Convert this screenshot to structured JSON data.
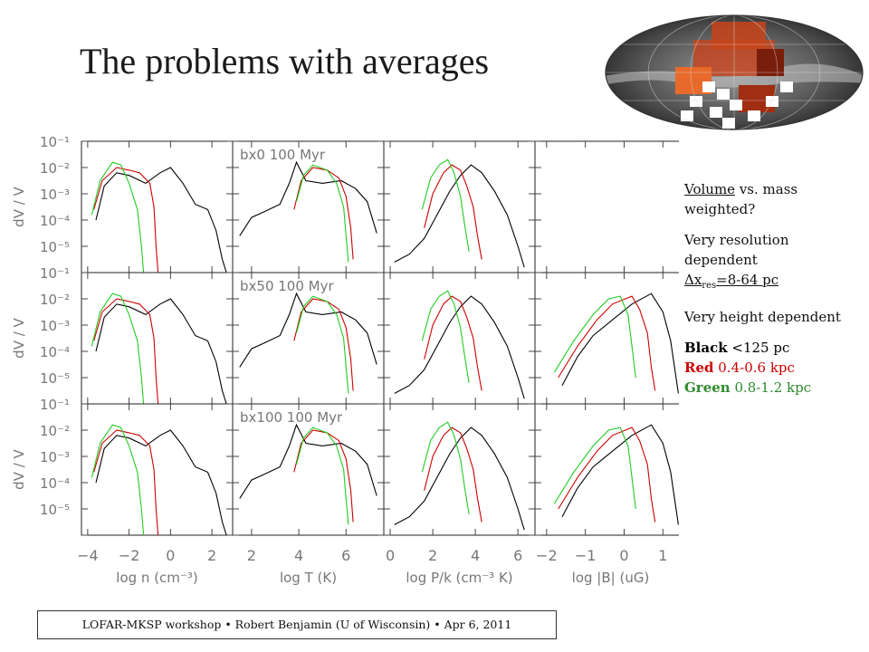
{
  "slide": {
    "title": "The problems with averages"
  },
  "notes": {
    "weighting": {
      "underlined": "Volume",
      "rest": " vs. mass weighted?"
    },
    "resolution": {
      "text": "Very resolution dependent",
      "delta_symbol": "Δx",
      "subscript": "res",
      "value": "=8-64 pc"
    },
    "height": "Very height dependent",
    "legend": [
      {
        "name": "Black",
        "range": " <125 pc",
        "color": "#000000"
      },
      {
        "name": "Red",
        "range": " 0.4-0.6 kpc",
        "color": "#cc0000"
      },
      {
        "name": "Green",
        "range": " 0.8-1.2 kpc",
        "color": "#2e8b2e"
      }
    ]
  },
  "footer": {
    "text": "LOFAR-MKSP workshop • Robert Benjamin (U of Wisconsin) • Apr 6, 2011"
  },
  "chart_data": {
    "type": "line",
    "ylabel": "dV / V",
    "y_ticks": [
      "10⁻¹",
      "10⁻²",
      "10⁻³",
      "10⁻⁴",
      "10⁻⁵"
    ],
    "yscale": "log",
    "ylim": [
      1e-06,
      0.1
    ],
    "row_labels": [
      "bx0  100 Myr",
      "bx50  100 Myr",
      "bx100  100 Myr"
    ],
    "series_colors": {
      "black": "#000000",
      "red": "#cc0000",
      "green": "#22cc22"
    },
    "columns": [
      {
        "xlabel": "log n (cm⁻³)",
        "x_ticks": [
          -4,
          -2,
          0,
          2
        ],
        "xlim": [
          -4.3,
          3.0
        ],
        "series": [
          {
            "color": "black",
            "points": [
              [
                -3.6,
                -4.0
              ],
              [
                -3.2,
                -2.7
              ],
              [
                -2.6,
                -2.2
              ],
              [
                -2.0,
                -2.3
              ],
              [
                -1.2,
                -2.6
              ],
              [
                -0.5,
                -2.2
              ],
              [
                0.0,
                -2.0
              ],
              [
                0.6,
                -2.6
              ],
              [
                1.2,
                -3.4
              ],
              [
                1.8,
                -3.6
              ],
              [
                2.2,
                -4.4
              ],
              [
                2.5,
                -5.5
              ],
              [
                2.7,
                -6.0
              ]
            ]
          },
          {
            "color": "red",
            "points": [
              [
                -3.7,
                -3.6
              ],
              [
                -3.3,
                -2.5
              ],
              [
                -2.6,
                -2.0
              ],
              [
                -2.0,
                -2.1
              ],
              [
                -1.5,
                -2.2
              ],
              [
                -1.0,
                -2.6
              ],
              [
                -0.8,
                -3.5
              ],
              [
                -0.7,
                -5.0
              ],
              [
                -0.6,
                -6.0
              ]
            ]
          },
          {
            "color": "green",
            "points": [
              [
                -3.8,
                -3.8
              ],
              [
                -3.4,
                -2.5
              ],
              [
                -2.8,
                -1.8
              ],
              [
                -2.4,
                -1.9
              ],
              [
                -2.0,
                -2.6
              ],
              [
                -1.6,
                -3.6
              ],
              [
                -1.4,
                -5.0
              ],
              [
                -1.3,
                -6.0
              ]
            ]
          }
        ]
      },
      {
        "xlabel": "log T (K)",
        "x_ticks": [
          2,
          4,
          6
        ],
        "xlim": [
          1.2,
          7.6
        ],
        "series": [
          {
            "color": "black",
            "points": [
              [
                1.5,
                -4.6
              ],
              [
                2.0,
                -3.9
              ],
              [
                2.5,
                -3.7
              ],
              [
                3.2,
                -3.4
              ],
              [
                3.6,
                -2.6
              ],
              [
                3.9,
                -1.8
              ],
              [
                4.3,
                -2.5
              ],
              [
                5.0,
                -2.6
              ],
              [
                5.8,
                -2.5
              ],
              [
                6.4,
                -2.8
              ],
              [
                6.9,
                -3.3
              ],
              [
                7.3,
                -4.5
              ]
            ]
          },
          {
            "color": "red",
            "points": [
              [
                3.8,
                -3.6
              ],
              [
                4.1,
                -2.5
              ],
              [
                4.6,
                -2.0
              ],
              [
                5.2,
                -2.1
              ],
              [
                5.7,
                -2.4
              ],
              [
                6.0,
                -3.1
              ],
              [
                6.2,
                -4.3
              ],
              [
                6.3,
                -5.5
              ]
            ]
          },
          {
            "color": "green",
            "points": [
              [
                3.9,
                -3.3
              ],
              [
                4.2,
                -2.3
              ],
              [
                4.6,
                -1.9
              ],
              [
                5.2,
                -2.1
              ],
              [
                5.6,
                -2.6
              ],
              [
                5.9,
                -3.5
              ],
              [
                6.0,
                -4.6
              ],
              [
                6.1,
                -5.6
              ]
            ]
          }
        ]
      },
      {
        "xlabel": "log P/k (cm⁻³ K)",
        "x_ticks": [
          0,
          2,
          4,
          6
        ],
        "xlim": [
          -0.3,
          6.8
        ],
        "series": [
          {
            "color": "black",
            "points": [
              [
                0.2,
                -5.6
              ],
              [
                0.9,
                -5.3
              ],
              [
                1.6,
                -4.7
              ],
              [
                2.2,
                -3.8
              ],
              [
                2.8,
                -2.9
              ],
              [
                3.3,
                -2.3
              ],
              [
                3.8,
                -1.9
              ],
              [
                4.3,
                -2.2
              ],
              [
                4.9,
                -2.9
              ],
              [
                5.5,
                -3.8
              ],
              [
                6.0,
                -5.0
              ],
              [
                6.3,
                -5.8
              ]
            ]
          },
          {
            "color": "red",
            "points": [
              [
                1.6,
                -4.3
              ],
              [
                2.0,
                -3.0
              ],
              [
                2.5,
                -2.2
              ],
              [
                2.9,
                -1.9
              ],
              [
                3.3,
                -2.1
              ],
              [
                3.6,
                -2.7
              ],
              [
                3.9,
                -3.5
              ],
              [
                4.1,
                -4.6
              ],
              [
                4.3,
                -5.5
              ]
            ]
          },
          {
            "color": "green",
            "points": [
              [
                1.5,
                -3.6
              ],
              [
                1.9,
                -2.4
              ],
              [
                2.3,
                -1.9
              ],
              [
                2.7,
                -1.7
              ],
              [
                3.0,
                -2.2
              ],
              [
                3.3,
                -3.1
              ],
              [
                3.5,
                -4.2
              ],
              [
                3.7,
                -5.2
              ]
            ]
          }
        ]
      },
      {
        "xlabel": "log |B| (uG)",
        "x_ticks": [
          -2,
          -1,
          0,
          1
        ],
        "xlim": [
          -2.3,
          1.6
        ],
        "series": [
          {
            "color": "black",
            "points": [
              [
                -1.6,
                -5.3
              ],
              [
                -1.2,
                -4.2
              ],
              [
                -0.8,
                -3.4
              ],
              [
                -0.3,
                -2.8
              ],
              [
                0.2,
                -2.2
              ],
              [
                0.7,
                -1.8
              ],
              [
                1.0,
                -2.5
              ],
              [
                1.2,
                -3.6
              ],
              [
                1.4,
                -5.6
              ]
            ]
          },
          {
            "color": "red",
            "points": [
              [
                -1.7,
                -5.0
              ],
              [
                -1.2,
                -3.8
              ],
              [
                -0.7,
                -2.8
              ],
              [
                -0.3,
                -2.2
              ],
              [
                0.2,
                -1.9
              ],
              [
                0.4,
                -2.4
              ],
              [
                0.6,
                -3.3
              ],
              [
                0.7,
                -4.6
              ],
              [
                0.8,
                -5.5
              ]
            ]
          },
          {
            "color": "green",
            "points": [
              [
                -1.8,
                -4.8
              ],
              [
                -1.3,
                -3.6
              ],
              [
                -0.8,
                -2.6
              ],
              [
                -0.4,
                -2.0
              ],
              [
                -0.1,
                -1.9
              ],
              [
                0.1,
                -2.6
              ],
              [
                0.2,
                -3.8
              ],
              [
                0.3,
                -5.0
              ]
            ]
          }
        ]
      }
    ]
  }
}
